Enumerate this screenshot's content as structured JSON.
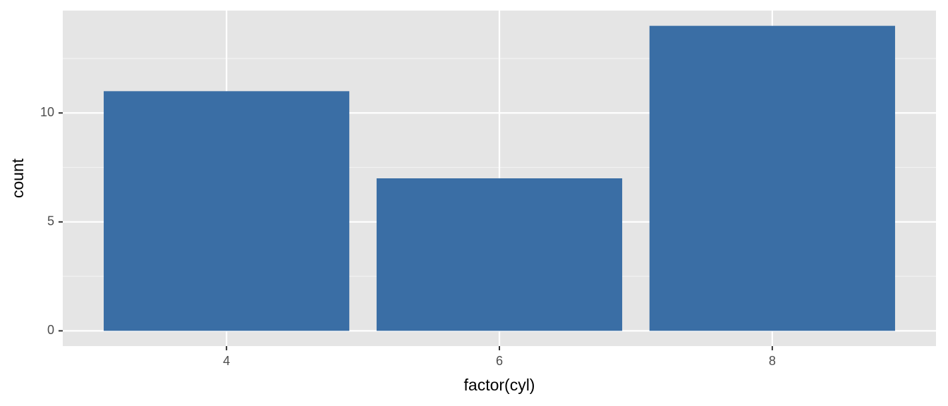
{
  "chart_data": {
    "type": "bar",
    "x_label": "factor(cyl)",
    "y_label": "count",
    "categories": [
      "4",
      "6",
      "8"
    ],
    "values": [
      11,
      7,
      14
    ],
    "color": "#3a6ea5",
    "ylim": [
      -0.7,
      14.7
    ],
    "yticks": [
      0,
      5,
      10
    ],
    "y_minor_gridlines": [
      2.5,
      7.5,
      12.5
    ],
    "grid": true
  }
}
